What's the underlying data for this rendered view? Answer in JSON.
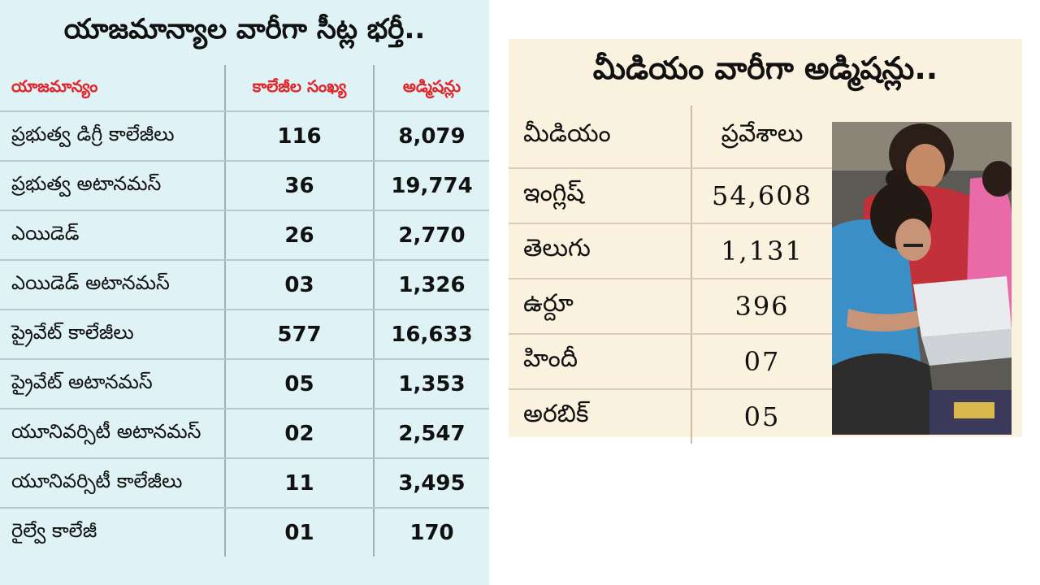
{
  "left": {
    "title": "యాజమాన్యాల వారీగా సీట్ల భర్తీ..",
    "headers": [
      "యాజమాన్యం",
      "కాలేజీల సంఖ్య",
      "అడ్మిషన్లు"
    ],
    "rows": [
      {
        "name": "ప్రభుత్వ డిగ్రీ కాలేజీలు",
        "colleges": "116",
        "admissions": "8,079"
      },
      {
        "name": "ప్రభుత్వ అటానమస్",
        "colleges": "36",
        "admissions": "19,774"
      },
      {
        "name": "ఎయిడెడ్",
        "colleges": "26",
        "admissions": "2,770"
      },
      {
        "name": "ఎయిడెడ్ అటానమస్",
        "colleges": "03",
        "admissions": "1,326"
      },
      {
        "name": "ప్రైవేట్ కాలేజీలు",
        "colleges": "577",
        "admissions": "16,633"
      },
      {
        "name": "ప్రైవేట్ అటానమస్",
        "colleges": "05",
        "admissions": "1,353"
      },
      {
        "name": "యూనివర్సిటీ అటానమస్",
        "colleges": "02",
        "admissions": "2,547"
      },
      {
        "name": "యూనివర్సిటీ కాలేజీలు",
        "colleges": "11",
        "admissions": "3,495"
      },
      {
        "name": "రైల్వే కాలేజీ",
        "colleges": "01",
        "admissions": "170"
      }
    ]
  },
  "right": {
    "title": "మీడియం వారీగా అడ్మిషన్లు..",
    "headers": [
      "మీడియం",
      "ప్రవేశాలు"
    ],
    "rows": [
      {
        "medium": "ఇంగ్లిష్",
        "admissions": "54,608"
      },
      {
        "medium": "తెలుగు",
        "admissions": "1,131"
      },
      {
        "medium": "ఉర్దూ",
        "admissions": "396"
      },
      {
        "medium": "హిందీ",
        "admissions": "07"
      },
      {
        "medium": "అరబిక్",
        "admissions": "05"
      }
    ],
    "photo_icon": "students-studying-photo"
  },
  "colors": {
    "left_bg": "#dff2f5",
    "right_bg": "#fbf1df",
    "header_red": "#e0262b"
  }
}
